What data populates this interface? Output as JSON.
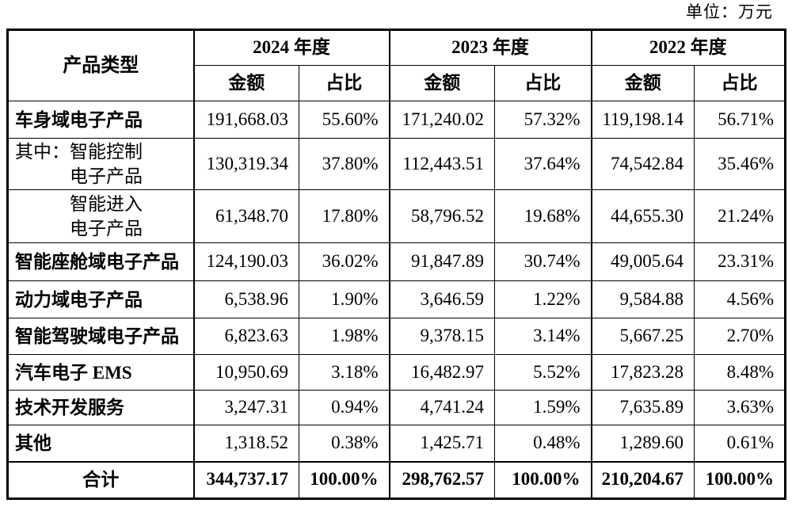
{
  "unit_label": "单位：万元",
  "table": {
    "product_type_header": "产品类型",
    "year_groups": [
      {
        "label": "2024 年度",
        "amount_header": "金额",
        "ratio_header": "占比"
      },
      {
        "label": "2023 年度",
        "amount_header": "金额",
        "ratio_header": "占比"
      },
      {
        "label": "2022 年度",
        "amount_header": "金额",
        "ratio_header": "占比"
      }
    ],
    "rows": [
      {
        "style": "main",
        "lines": [
          {
            "text": "车身域电子产品",
            "indent": false
          }
        ],
        "values": [
          "191,668.03",
          "55.60%",
          "171,240.02",
          "57.32%",
          "119,198.14",
          "56.71%"
        ]
      },
      {
        "style": "sub",
        "lines": [
          {
            "text": "其中：智能控制",
            "indent": false
          },
          {
            "text": "电子产品",
            "indent": true
          }
        ],
        "values": [
          "130,319.34",
          "37.80%",
          "112,443.51",
          "37.64%",
          "74,542.84",
          "35.46%"
        ]
      },
      {
        "style": "sub",
        "lines": [
          {
            "text": "智能进入",
            "indent": true
          },
          {
            "text": "电子产品",
            "indent": true
          }
        ],
        "values": [
          "61,348.70",
          "17.80%",
          "58,796.52",
          "19.68%",
          "44,655.30",
          "21.24%"
        ]
      },
      {
        "style": "main",
        "lines": [
          {
            "text": "智能座舱域电子产品",
            "indent": false
          }
        ],
        "values": [
          "124,190.03",
          "36.02%",
          "91,847.89",
          "30.74%",
          "49,005.64",
          "23.31%"
        ]
      },
      {
        "style": "main",
        "lines": [
          {
            "text": "动力域电子产品",
            "indent": false
          }
        ],
        "values": [
          "6,538.96",
          "1.90%",
          "3,646.59",
          "1.22%",
          "9,584.88",
          "4.56%"
        ]
      },
      {
        "style": "main",
        "lines": [
          {
            "text": "智能驾驶域电子产品",
            "indent": false
          }
        ],
        "values": [
          "6,823.63",
          "1.98%",
          "9,378.15",
          "3.14%",
          "5,667.25",
          "2.70%"
        ]
      },
      {
        "style": "main",
        "lines": [
          {
            "text": "汽车电子 EMS",
            "indent": false
          }
        ],
        "values": [
          "10,950.69",
          "3.18%",
          "16,482.97",
          "5.52%",
          "17,823.28",
          "8.48%"
        ]
      },
      {
        "style": "main",
        "lines": [
          {
            "text": "技术开发服务",
            "indent": false
          }
        ],
        "values": [
          "3,247.31",
          "0.94%",
          "4,741.24",
          "1.59%",
          "7,635.89",
          "3.63%"
        ]
      },
      {
        "style": "main",
        "lines": [
          {
            "text": "其他",
            "indent": false
          }
        ],
        "values": [
          "1,318.52",
          "0.38%",
          "1,425.71",
          "0.48%",
          "1,289.60",
          "0.61%"
        ]
      },
      {
        "style": "total",
        "lines": [
          {
            "text": "合计",
            "indent": false
          }
        ],
        "values": [
          "344,737.17",
          "100.00%",
          "298,762.57",
          "100.00%",
          "210,204.67",
          "100.00%"
        ]
      }
    ]
  }
}
